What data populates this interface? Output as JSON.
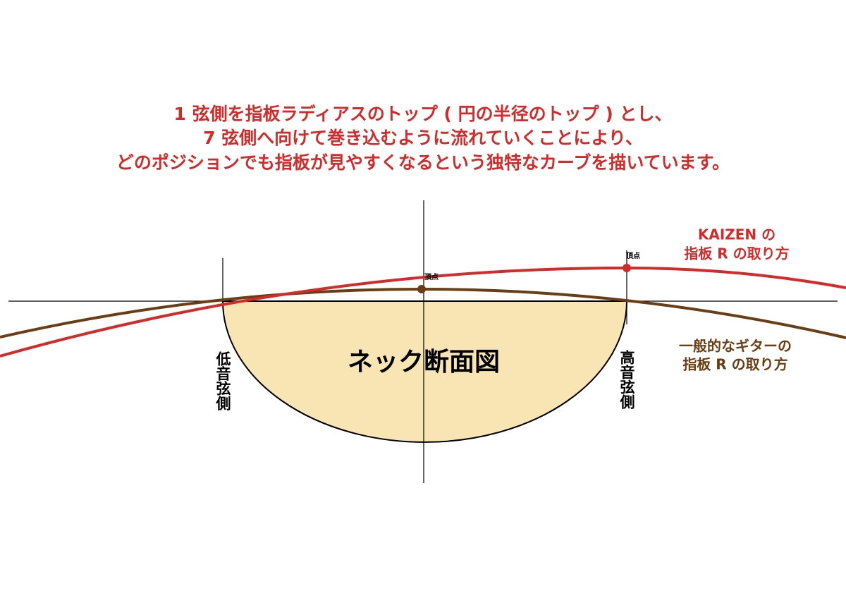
{
  "headline": [
    "1 弦側を指板ラディアスのトップ ( 円の半径のトップ ) とし、",
    "7 弦側へ向けて巻き込むように流れていくことにより、",
    "どのポジションでも指板が見やすくなるという独特なカーブを描いています。"
  ],
  "kaizen_label": [
    "KAIZEN の",
    "指板 R の取り方"
  ],
  "standard_label": [
    "一般的なギターの",
    "指板 R の取り方"
  ],
  "apex_labels": [
    "頂点",
    "頂点"
  ],
  "neck_label": "ネック断面図",
  "bass_side": "低音弦側",
  "treble_side": "高音弦側"
}
